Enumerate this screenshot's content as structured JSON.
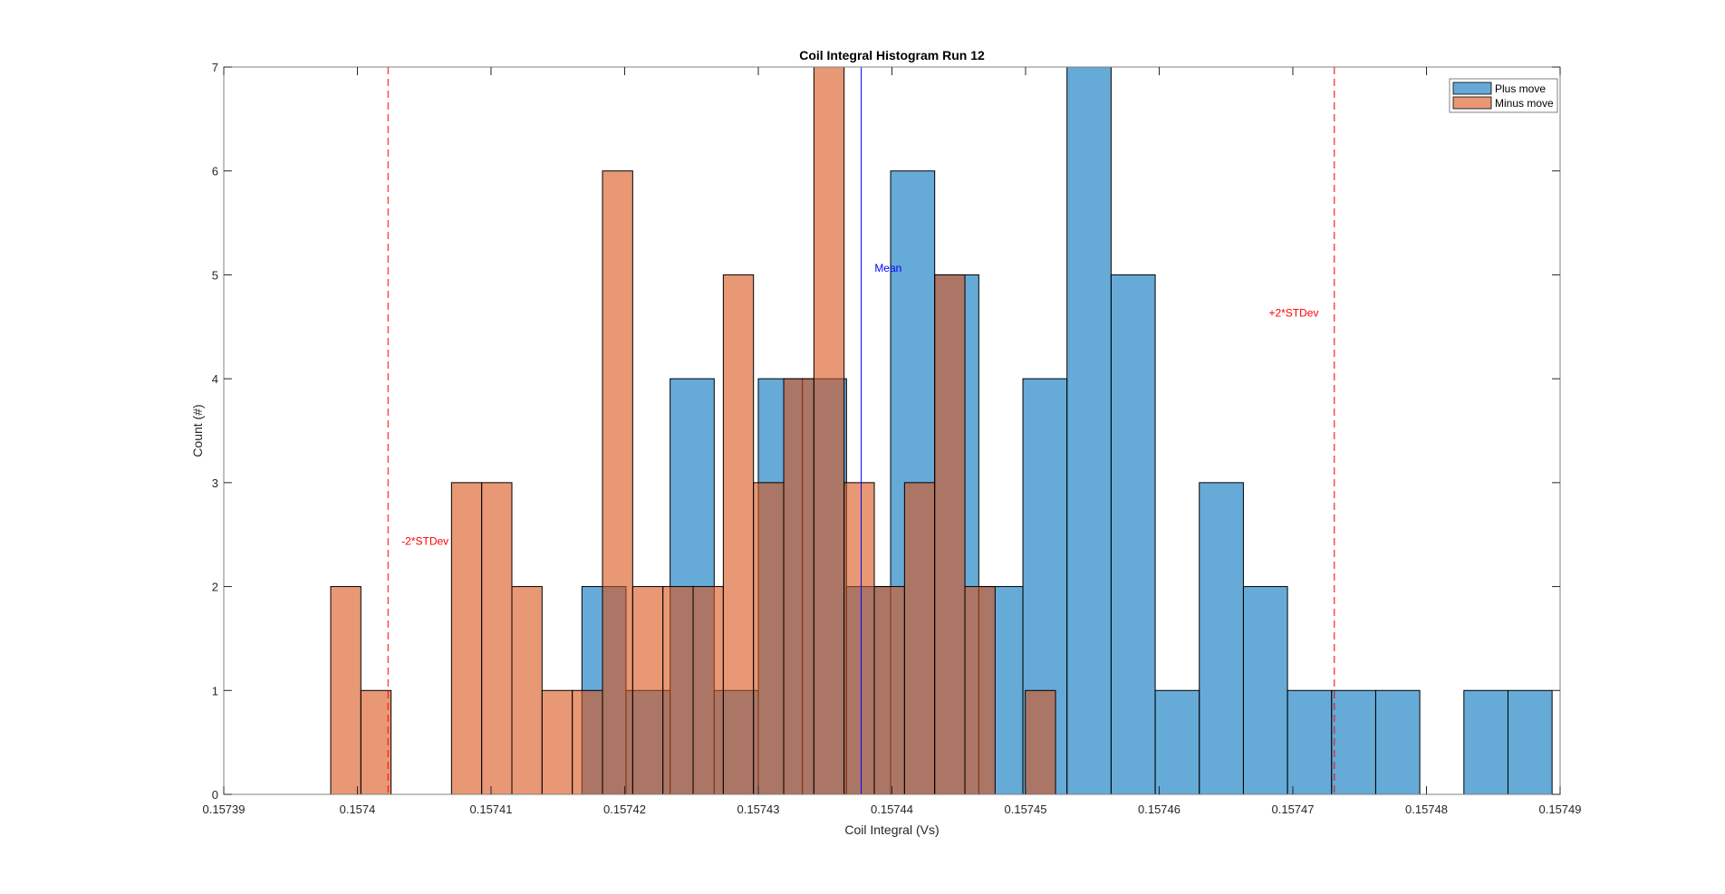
{
  "chart_data": {
    "type": "bar",
    "subtype": "overlaid-histogram",
    "title": "Coil Integral Histogram Run 12",
    "xlabel": "Coil Integral (Vs)",
    "ylabel": "Count (#)",
    "xlim": [
      0.15739,
      0.15749
    ],
    "ylim": [
      0,
      7
    ],
    "xticks": [
      0.15739,
      0.1574,
      0.15741,
      0.15742,
      0.15743,
      0.15744,
      0.15745,
      0.15746,
      0.15747,
      0.15748,
      0.15749
    ],
    "xtick_labels": [
      "0.15739",
      "0.1574",
      "0.15741",
      "0.15742",
      "0.15743",
      "0.15744",
      "0.15745",
      "0.15746",
      "0.15747",
      "0.15748",
      "0.15749"
    ],
    "yticks": [
      0,
      1,
      2,
      3,
      4,
      5,
      6,
      7
    ],
    "ytick_labels": [
      "0",
      "1",
      "2",
      "3",
      "4",
      "5",
      "6",
      "7"
    ],
    "grid": false,
    "legend": {
      "position": "top-right",
      "entries": [
        {
          "label": "Plus move",
          "color": "#0072BD"
        },
        {
          "label": "Minus move",
          "color": "#D95319"
        }
      ]
    },
    "series": [
      {
        "name": "Plus move",
        "color": "#0072BD",
        "face_alpha": 0.6,
        "bin_start": 0.1574168,
        "bin_width": 3.3e-06,
        "counts": [
          2,
          1,
          4,
          1,
          4,
          4,
          2,
          6,
          5,
          2,
          4,
          7,
          5,
          1,
          3,
          2,
          1,
          1,
          1,
          0,
          1,
          1
        ]
      },
      {
        "name": "Minus move",
        "color": "#D95319",
        "face_alpha": 0.6,
        "bin_start": 0.157398,
        "bin_width": 2.26e-06,
        "counts": [
          2,
          1,
          0,
          0,
          3,
          3,
          2,
          1,
          1,
          6,
          2,
          2,
          2,
          5,
          3,
          4,
          7,
          3,
          2,
          3,
          5,
          2,
          0,
          1
        ]
      }
    ],
    "reference_lines": [
      {
        "name": "Mean",
        "x": 0.1574377,
        "color": "#0000FF",
        "style": "solid",
        "label": "Mean",
        "label_x": 0.1574387,
        "label_y": 5.03
      },
      {
        "name": "-2*STDev",
        "x": 0.1574023,
        "color": "#FF0000",
        "style": "dashed",
        "label": "-2*STDev",
        "label_x": 0.1574033,
        "label_y": 2.4
      },
      {
        "name": "+2*STDev",
        "x": 0.1574731,
        "color": "#FF0000",
        "style": "dashed",
        "label": "+2*STDev",
        "label_x": 0.1574682,
        "label_y": 4.6
      }
    ]
  }
}
